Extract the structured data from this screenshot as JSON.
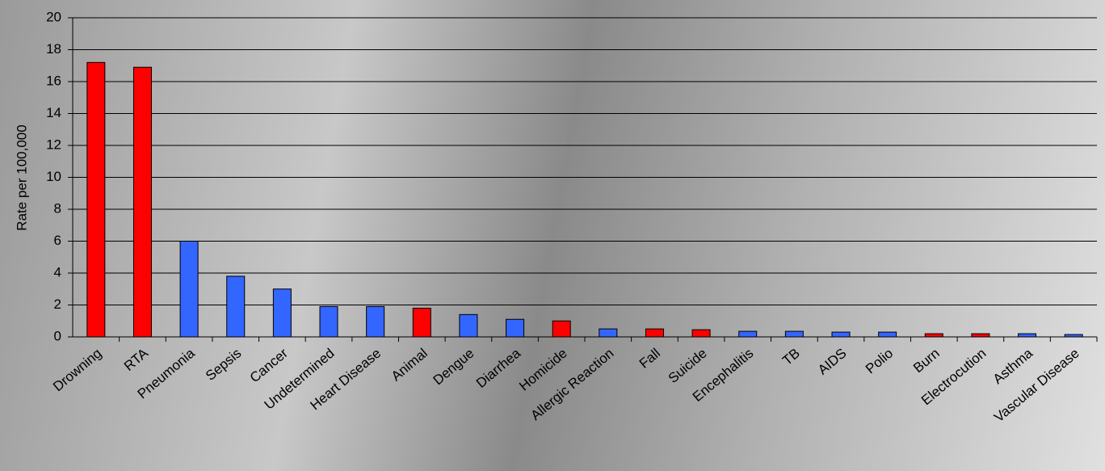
{
  "chart_data": {
    "type": "bar",
    "ylabel": "Rate per 100,000",
    "categories": [
      "Drowning",
      "RTA",
      "Pneumonia",
      "Sepsis",
      "Cancer",
      "Undetermined",
      "Heart Disease",
      "Animal",
      "Dengue",
      "Diarrhea",
      "Homicide",
      "Allergic Reaction",
      "Fall",
      "Suicide",
      "Encephalitis",
      "TB",
      "AIDS",
      "Polio",
      "Burn",
      "Electrocution",
      "Asthma",
      "Vascular Disease"
    ],
    "values": [
      17.2,
      16.9,
      6.0,
      3.8,
      3.0,
      1.9,
      1.9,
      1.8,
      1.4,
      1.1,
      1.0,
      0.5,
      0.5,
      0.45,
      0.35,
      0.35,
      0.3,
      0.3,
      0.2,
      0.2,
      0.2,
      0.15
    ],
    "colors": [
      "#ff0000",
      "#ff0000",
      "#3366ff",
      "#3366ff",
      "#3366ff",
      "#3366ff",
      "#3366ff",
      "#ff0000",
      "#3366ff",
      "#3366ff",
      "#ff0000",
      "#3366ff",
      "#ff0000",
      "#ff0000",
      "#3366ff",
      "#3366ff",
      "#3366ff",
      "#3366ff",
      "#ff0000",
      "#ff0000",
      "#3366ff",
      "#3366ff"
    ],
    "ylim": [
      0,
      20
    ],
    "yticks": [
      0,
      2,
      4,
      6,
      8,
      10,
      12,
      14,
      16,
      18,
      20
    ],
    "grid": true
  }
}
